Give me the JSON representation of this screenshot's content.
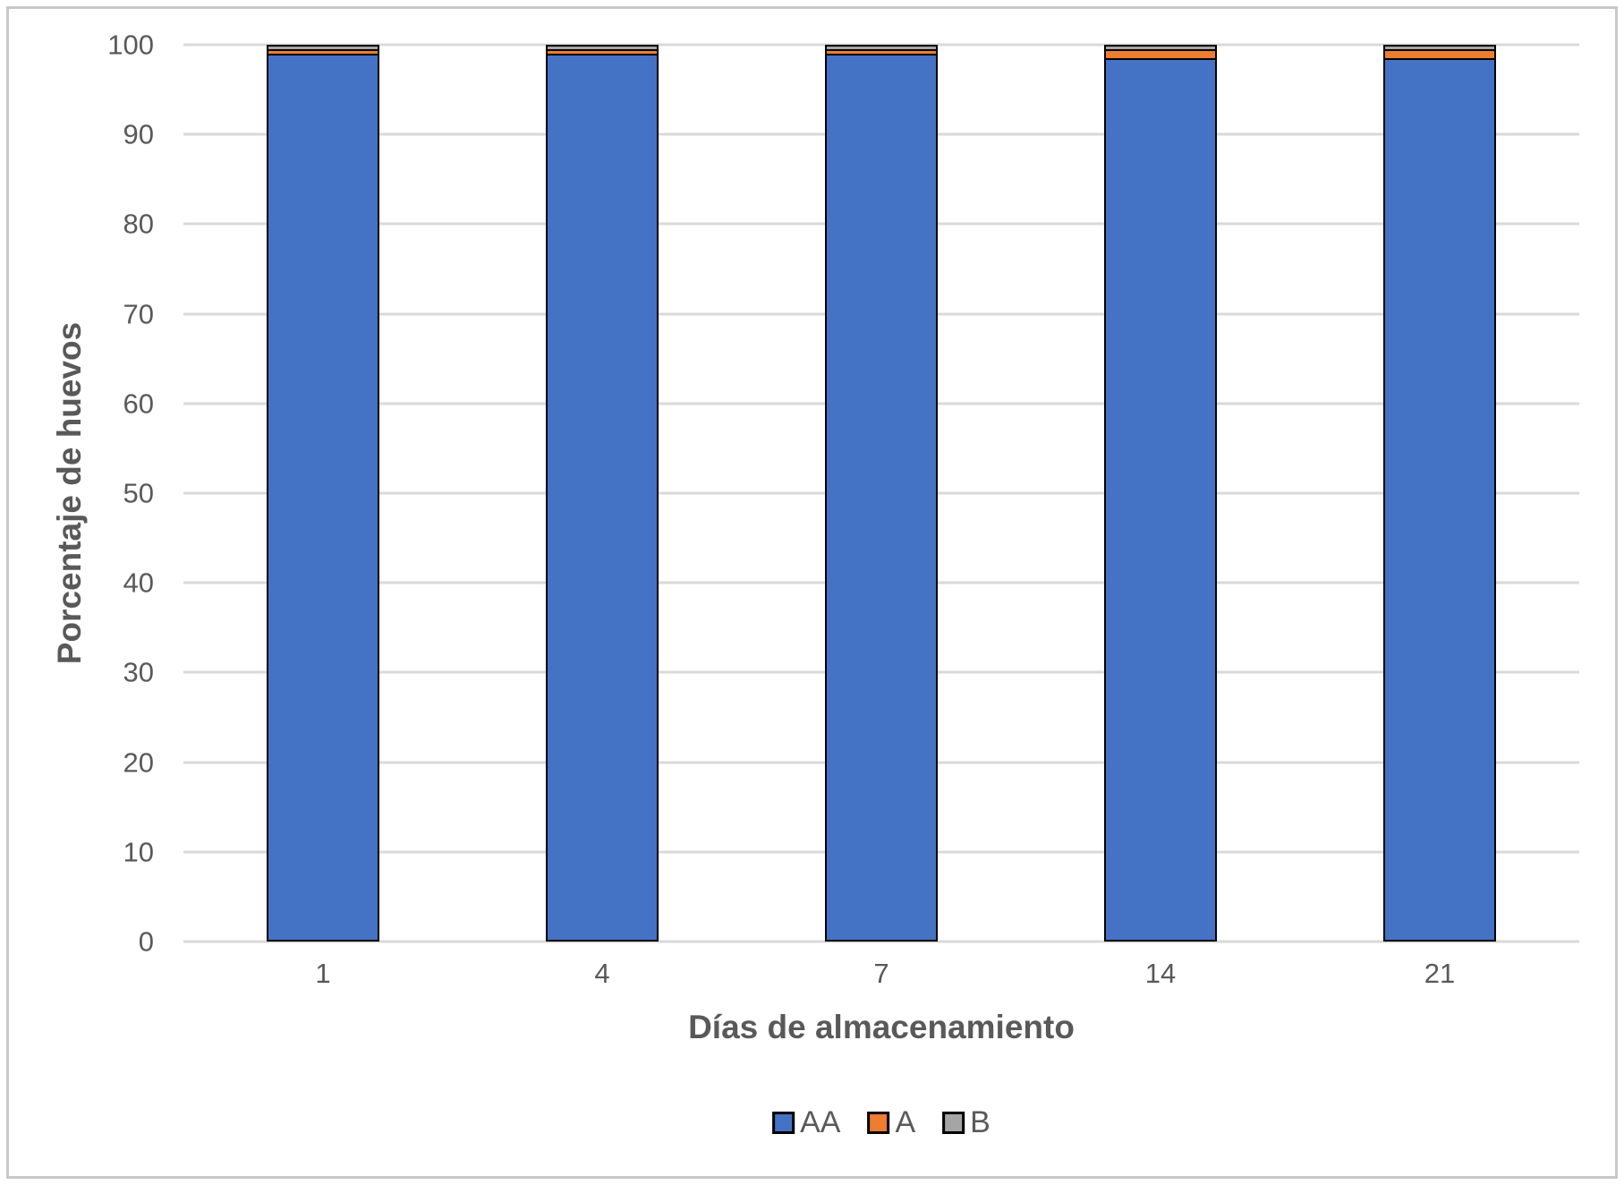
{
  "chart_data": {
    "type": "bar",
    "stacked": true,
    "stacked_total": 100,
    "title": "",
    "xlabel": "Días de almacenamiento",
    "ylabel": "Porcentaje de huevos",
    "categories": [
      "1",
      "4",
      "7",
      "14",
      "21"
    ],
    "series": [
      {
        "name": "AA",
        "color": "#4472C4",
        "values": [
          99,
          99,
          99,
          98.5,
          98.5
        ]
      },
      {
        "name": "A",
        "color": "#ED7D31",
        "values": [
          0.5,
          0.5,
          0.5,
          1,
          1
        ]
      },
      {
        "name": "B",
        "color": "#A5A5A5",
        "values": [
          0.5,
          0.5,
          0.5,
          0.5,
          0.5
        ]
      }
    ],
    "ylim": [
      0,
      100
    ],
    "yticks": [
      0,
      10,
      20,
      30,
      40,
      50,
      60,
      70,
      80,
      90,
      100
    ],
    "grid": true,
    "gridline_color": "#D9D9D9",
    "bar_border_color": "#000000",
    "text_color": "#595959",
    "legend_position": "bottom",
    "legend_labels": [
      "AA",
      "A",
      "B"
    ]
  }
}
